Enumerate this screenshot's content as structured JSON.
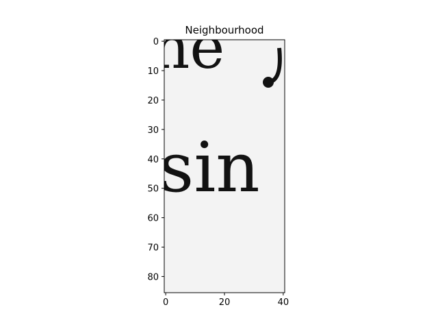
{
  "chart_data": {
    "type": "heatmap",
    "title": "Neighbourhood",
    "xlabel": "",
    "ylabel": "",
    "xlim": [
      0,
      40
    ],
    "ylim": [
      85,
      0
    ],
    "x_ticks": [
      0,
      20,
      40
    ],
    "y_ticks": [
      0,
      10,
      20,
      30,
      40,
      50,
      60,
      70,
      80
    ],
    "colormap": "gray",
    "grid": false,
    "content": "grayscale crop of scanned printed text",
    "visible_letters": [
      "ne",
      "sin"
    ]
  },
  "colors": {
    "background": "#ffffff",
    "paper": "#f3f3f3",
    "ink": "#121212",
    "axis": "#000000"
  }
}
